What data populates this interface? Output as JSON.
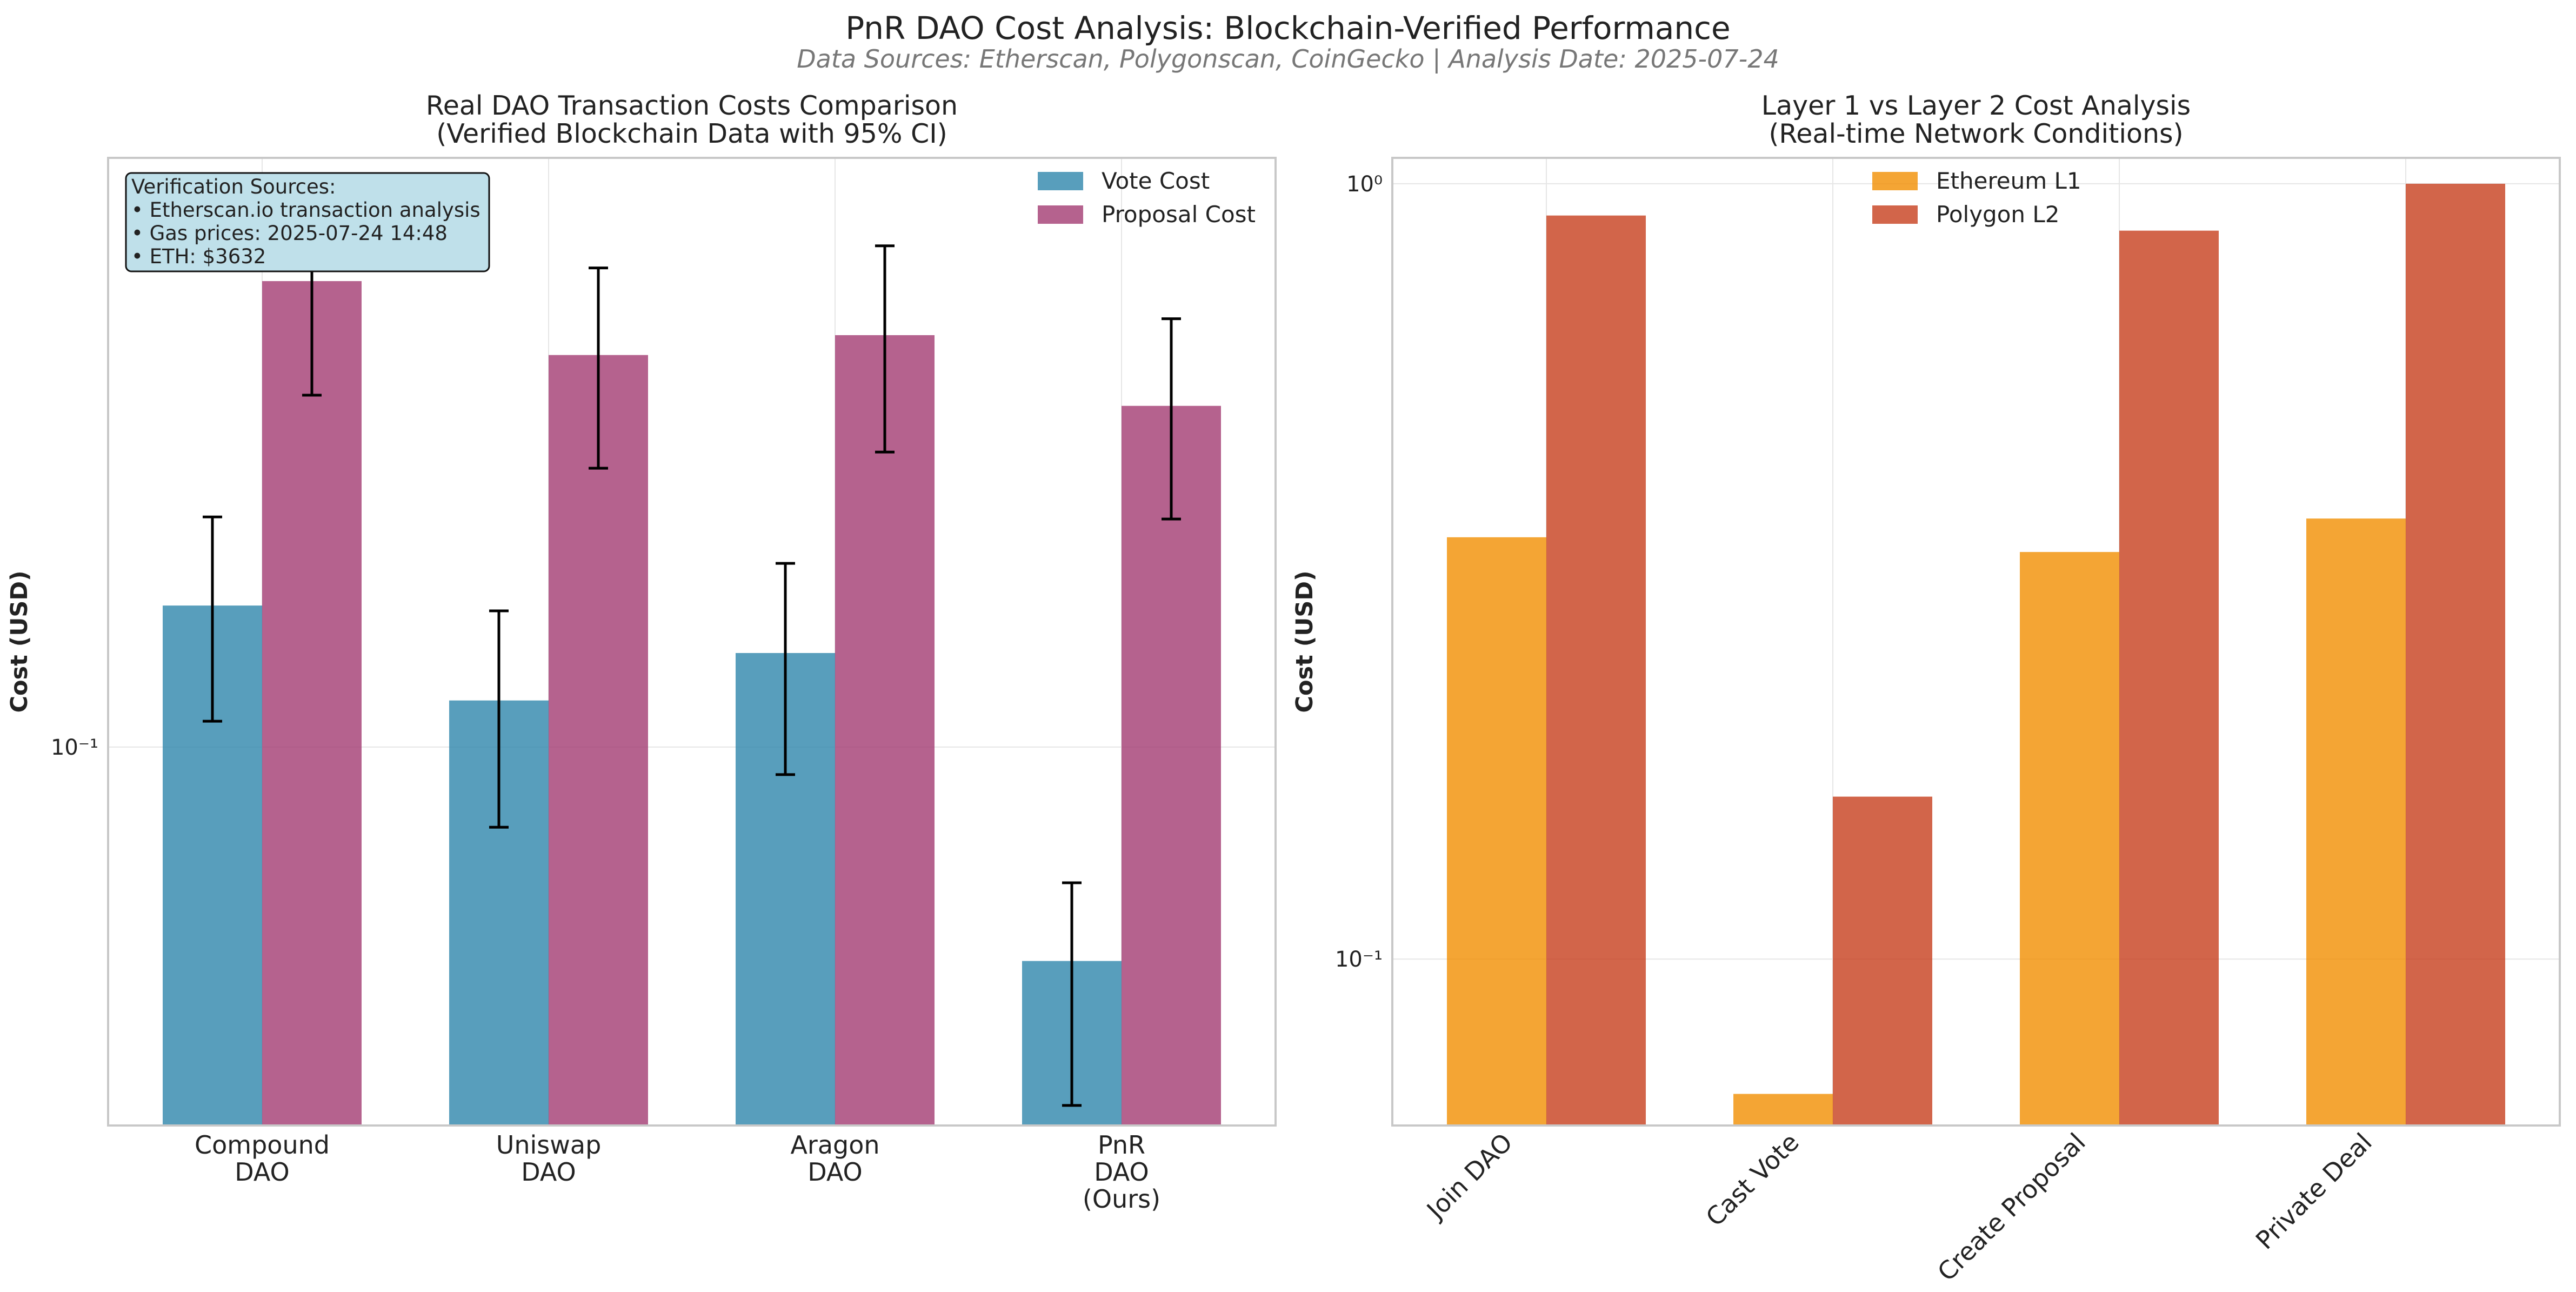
{
  "figure": {
    "title": "PnR DAO Cost Analysis: Blockchain-Verified Performance",
    "subtitle": "Data Sources: Etherscan, Polygonscan, CoinGecko | Analysis Date: 2025-07-24"
  },
  "chart_data": [
    {
      "type": "bar",
      "title": "Real DAO Transaction Costs Comparison\n(Verified Blockchain Data with 95% CI)",
      "xlabel": "",
      "ylabel": "Cost (USD)",
      "yscale": "log",
      "ylim": [
        0.037,
        0.47
      ],
      "yticks": [
        0.1
      ],
      "ytick_labels": [
        "10⁻¹"
      ],
      "categories": [
        "Compound\nDAO",
        "Uniswap\nDAO",
        "Aragon\nDAO",
        "PnR\nDAO\n(Ours)"
      ],
      "series": [
        {
          "name": "Vote Cost",
          "color": "#2E86AB",
          "values": [
            0.145,
            0.113,
            0.128,
            0.057
          ],
          "ci_low": [
            0.107,
            0.081,
            0.093,
            0.039
          ],
          "ci_high": [
            0.183,
            0.143,
            0.162,
            0.07
          ]
        },
        {
          "name": "Proposal Cost",
          "color": "#A23B72",
          "values": [
            0.34,
            0.28,
            0.295,
            0.245
          ],
          "ci_low": [
            0.252,
            0.208,
            0.217,
            0.182
          ],
          "ci_high": [
            0.428,
            0.352,
            0.373,
            0.308
          ]
        }
      ],
      "grid": true,
      "legend": "top-right",
      "annotation": {
        "lines": [
          "Verification Sources:",
          "• Etherscan.io transaction analysis",
          "• Gas prices: 2025-07-24 14:48",
          "• ETH: $3632"
        ],
        "position": "top-left",
        "background": "#BFE0EA"
      }
    },
    {
      "type": "bar",
      "title": "Layer 1 vs Layer 2 Cost Analysis\n(Real-time Network Conditions)",
      "xlabel": "",
      "ylabel": "Cost (USD)",
      "yscale": "log",
      "ylim": [
        0.061,
        1.08
      ],
      "yticks": [
        0.1,
        1.0
      ],
      "ytick_labels": [
        "10⁻¹",
        "10⁰"
      ],
      "categories": [
        "Join DAO",
        "Cast Vote",
        "Create Proposal",
        "Private Deal"
      ],
      "xtick_rotation": 45,
      "series": [
        {
          "name": "Ethereum L1",
          "color": "#F18F01",
          "values": [
            0.35,
            0.067,
            0.335,
            0.37
          ]
        },
        {
          "name": "Polygon L2",
          "color": "#C73E1D",
          "values": [
            0.91,
            0.162,
            0.87,
            1.0
          ]
        }
      ],
      "grid": true,
      "legend": "top-center"
    }
  ]
}
